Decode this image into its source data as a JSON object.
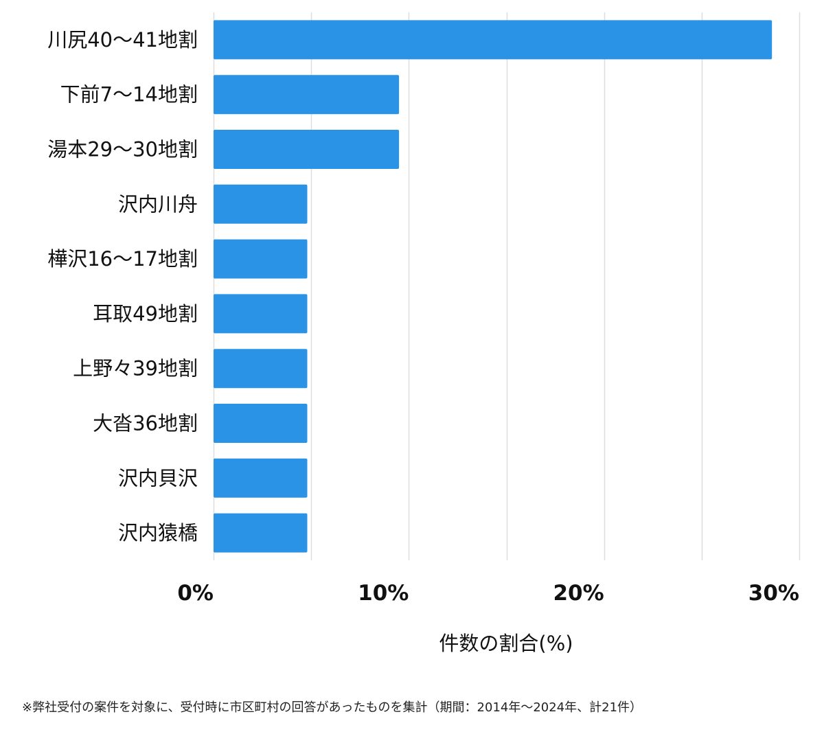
{
  "chart_data": {
    "type": "bar",
    "orientation": "horizontal",
    "categories": [
      "川尻40〜41地割",
      "下前7〜14地割",
      "湯本29〜30地割",
      "沢内川舟",
      "樺沢16〜17地割",
      "耳取49地割",
      "上野々39地割",
      "大沓36地割",
      "沢内貝沢",
      "沢内猿橋"
    ],
    "values": [
      28.6,
      9.5,
      9.5,
      4.8,
      4.8,
      4.8,
      4.8,
      4.8,
      4.8,
      4.8
    ],
    "xlabel": "件数の割合(%)",
    "ylabel": "",
    "xlim": [
      0,
      30
    ],
    "xticks": [
      0,
      10,
      20,
      30
    ],
    "xtick_labels": [
      "0%",
      "10%",
      "20%",
      "30%"
    ],
    "grid": true,
    "colors": {
      "bar": "#2a93e6",
      "grid": "#dddddd"
    }
  },
  "footnote": "※弊社受付の案件を対象に、受付時に市区町村の回答があったものを集計（期間：2014年〜2024年、計21件）"
}
